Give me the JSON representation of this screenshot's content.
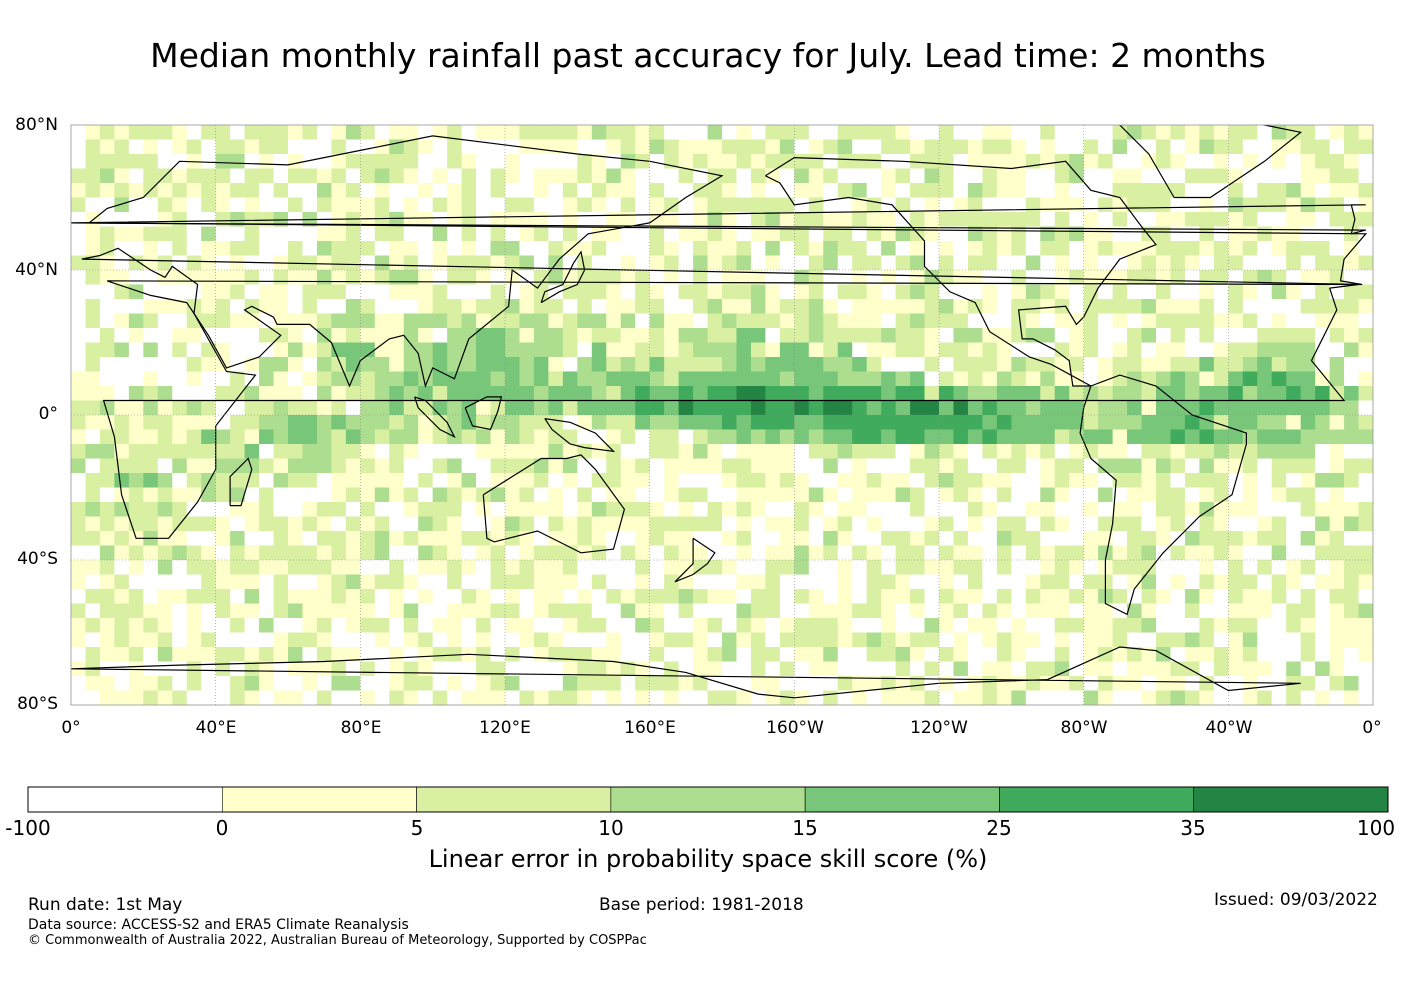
{
  "title": "Median monthly rainfall past accuracy for July. Lead time: 2 months",
  "map": {
    "projection": "equirectangular",
    "lon_range": [
      0,
      360
    ],
    "lat_range": [
      -80,
      80
    ],
    "lat_labels": [
      "80°N",
      "40°N",
      "0°",
      "40°S",
      "80°S"
    ],
    "lon_labels": [
      "0°",
      "40°E",
      "80°E",
      "120°E",
      "160°E",
      "160°W",
      "120°W",
      "80°W",
      "40°W",
      "0°"
    ],
    "gridlines": true
  },
  "colorbar": {
    "ticks": [
      "-100",
      "0",
      "5",
      "10",
      "15",
      "25",
      "35",
      "100"
    ],
    "colors": [
      "#ffffff",
      "#ffffcc",
      "#d9f0a3",
      "#addd8e",
      "#78c679",
      "#41ab5d",
      "#238443"
    ],
    "label": "Linear error in probability space skill score (%)"
  },
  "footer": {
    "run_date": "Run date: 1st May",
    "base_period": "Base period: 1981-2018",
    "issued": "Issued: 09/03/2022",
    "data_source": "Data source: ACCESS-S2 and ERA5 Climate Reanalysis",
    "copyright": "© Commonwealth of Australia 2022, Australian Bureau of Meteorology, Supported by COSPPac"
  }
}
